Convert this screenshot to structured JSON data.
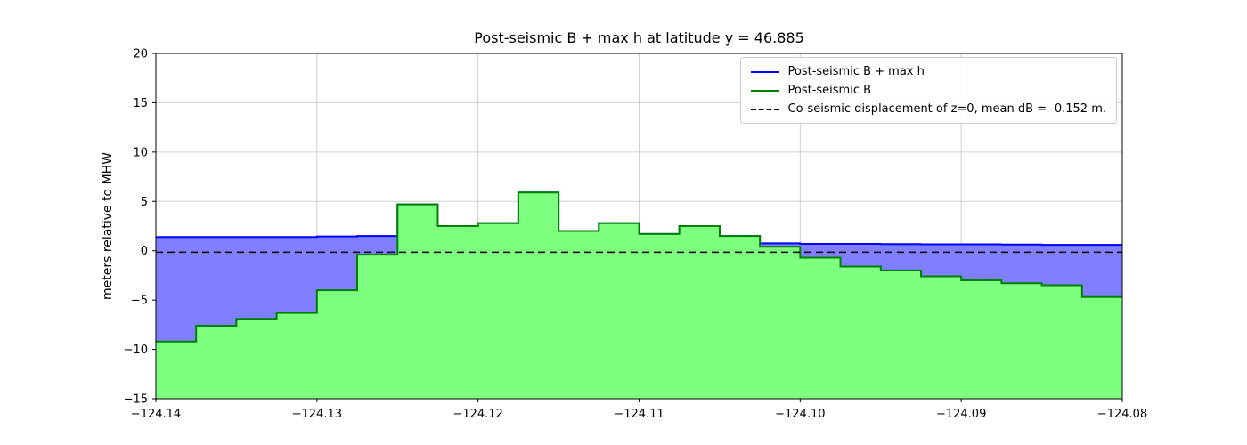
{
  "chart_data": {
    "type": "area",
    "title": "Post-seismic B + max h at latitude y = 46.885",
    "xlabel": "",
    "ylabel": "meters relative to MHW",
    "xlim": [
      -124.14,
      -124.08
    ],
    "ylim": [
      -15,
      20
    ],
    "grid": true,
    "legend_position": "upper right",
    "step_mode": "piecewise-constant",
    "xticks": [
      {
        "v": -124.14,
        "label": "−124.14"
      },
      {
        "v": -124.13,
        "label": "−124.13"
      },
      {
        "v": -124.12,
        "label": "−124.12"
      },
      {
        "v": -124.11,
        "label": "−124.11"
      },
      {
        "v": -124.1,
        "label": "−124.10"
      },
      {
        "v": -124.09,
        "label": "−124.09"
      },
      {
        "v": -124.08,
        "label": "−124.08"
      }
    ],
    "yticks": [
      {
        "v": -15,
        "label": "−15"
      },
      {
        "v": -10,
        "label": "−10"
      },
      {
        "v": -5,
        "label": "−5"
      },
      {
        "v": 0,
        "label": "0"
      },
      {
        "v": 5,
        "label": "5"
      },
      {
        "v": 10,
        "label": "10"
      },
      {
        "v": 15,
        "label": "15"
      },
      {
        "v": 20,
        "label": "20"
      }
    ],
    "x_edges": [
      -124.14,
      -124.1375,
      -124.135,
      -124.1325,
      -124.13,
      -124.1275,
      -124.125,
      -124.1225,
      -124.12,
      -124.1175,
      -124.115,
      -124.1125,
      -124.11,
      -124.1075,
      -124.105,
      -124.1025,
      -124.1,
      -124.0975,
      -124.095,
      -124.0925,
      -124.09,
      -124.0875,
      -124.085,
      -124.0825,
      -124.08
    ],
    "series": [
      {
        "name": "Post-seismic B + max h",
        "color": "#0000ff",
        "fill": "#7f7fff",
        "style": "solid",
        "values": [
          1.4,
          1.4,
          1.4,
          1.4,
          1.45,
          1.5,
          4.7,
          2.5,
          2.8,
          5.9,
          2.0,
          2.8,
          1.7,
          2.5,
          1.5,
          0.75,
          0.7,
          0.7,
          0.68,
          0.65,
          0.65,
          0.62,
          0.6,
          0.6
        ]
      },
      {
        "name": "Post-seismic B",
        "color": "#008000",
        "fill": "#7fff7f",
        "style": "solid",
        "values": [
          -9.2,
          -7.6,
          -6.9,
          -6.3,
          -4.0,
          -0.4,
          4.7,
          2.5,
          2.8,
          5.9,
          2.0,
          2.8,
          1.7,
          2.5,
          1.5,
          0.4,
          -0.7,
          -1.6,
          -2.0,
          -2.6,
          -3.0,
          -3.3,
          -3.5,
          -4.7
        ]
      },
      {
        "name": "Co-seismic displacement of z=0, mean dB = -0.152 m.",
        "color": "#000000",
        "style": "dashed",
        "value": -0.152
      }
    ]
  }
}
